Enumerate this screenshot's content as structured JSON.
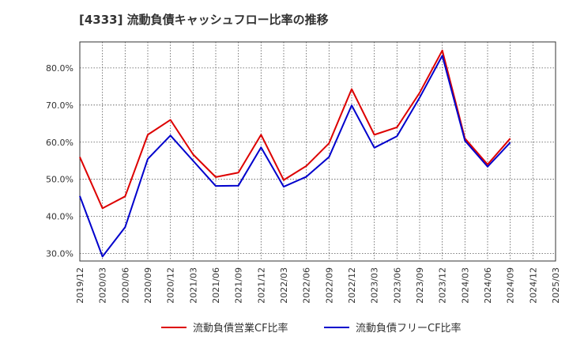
{
  "chart_data": {
    "type": "line",
    "title": "[4333]  流動負債キャッシュフロー比率の推移",
    "xlabel": "",
    "ylabel": "",
    "categories": [
      "2019/12",
      "2020/03",
      "2020/06",
      "2020/09",
      "2020/12",
      "2021/03",
      "2021/06",
      "2021/09",
      "2021/12",
      "2022/03",
      "2022/06",
      "2022/09",
      "2022/12",
      "2023/03",
      "2023/06",
      "2023/09",
      "2023/12",
      "2024/03",
      "2024/06",
      "2024/09",
      "2024/12",
      "2025/03"
    ],
    "y_ticks": [
      "30.0%",
      "40.0%",
      "50.0%",
      "60.0%",
      "70.0%",
      "80.0%"
    ],
    "y_tick_values": [
      30,
      40,
      50,
      60,
      70,
      80
    ],
    "ylim": [
      28,
      87
    ],
    "grid": true,
    "legend_position": "bottom",
    "series": [
      {
        "name": "流動負債営業CF比率",
        "color": "#dd0000",
        "values": [
          56.0,
          42.2,
          45.4,
          62.0,
          66.0,
          56.7,
          50.6,
          51.8,
          62.0,
          49.8,
          53.6,
          59.7,
          74.3,
          62.0,
          64.0,
          73.3,
          84.7,
          61.0,
          54.0,
          61.0,
          null,
          null
        ]
      },
      {
        "name": "流動負債フリーCF比率",
        "color": "#0000cc",
        "values": [
          45.5,
          29.2,
          37.1,
          55.5,
          61.8,
          55.0,
          48.2,
          48.3,
          58.6,
          48.0,
          50.7,
          56.0,
          69.9,
          58.5,
          61.6,
          72.0,
          83.3,
          60.4,
          53.4,
          59.9,
          null,
          null
        ]
      }
    ]
  }
}
